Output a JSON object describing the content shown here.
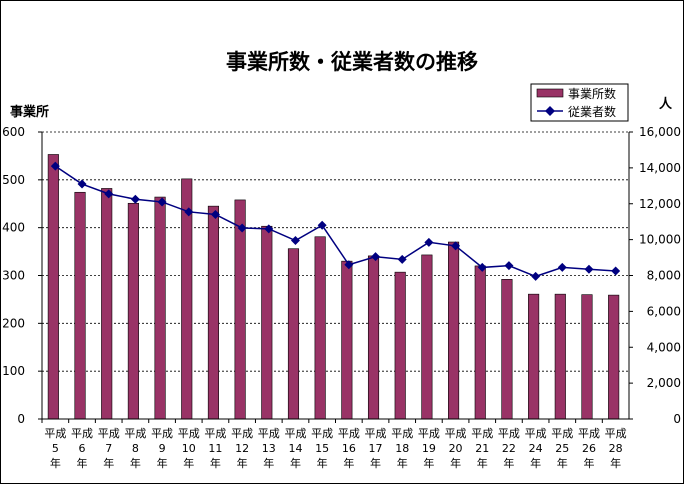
{
  "chart_data": {
    "type": "bar+line",
    "title": "事業所数・従業者数の推移",
    "left_axis_label": "事業所",
    "right_axis_label": "人",
    "left_ylim": [
      0,
      600
    ],
    "left_ticks": [
      "0",
      "100",
      "200",
      "300",
      "400",
      "500",
      "600"
    ],
    "right_ylim": [
      0,
      16000
    ],
    "right_ticks": [
      "0",
      "2,000",
      "4,000",
      "6,000",
      "8,000",
      "10,000",
      "12,000",
      "14,000",
      "16,000"
    ],
    "grid": true,
    "legend_position": "top-right",
    "categories": [
      [
        "平成",
        "5",
        "年"
      ],
      [
        "平成",
        "6",
        "年"
      ],
      [
        "平成",
        "7",
        "年"
      ],
      [
        "平成",
        "8",
        "年"
      ],
      [
        "平成",
        "9",
        "年"
      ],
      [
        "平成",
        "10",
        "年"
      ],
      [
        "平成",
        "11",
        "年"
      ],
      [
        "平成",
        "12",
        "年"
      ],
      [
        "平成",
        "13",
        "年"
      ],
      [
        "平成",
        "14",
        "年"
      ],
      [
        "平成",
        "15",
        "年"
      ],
      [
        "平成",
        "16",
        "年"
      ],
      [
        "平成",
        "17",
        "年"
      ],
      [
        "平成",
        "18",
        "年"
      ],
      [
        "平成",
        "19",
        "年"
      ],
      [
        "平成",
        "20",
        "年"
      ],
      [
        "平成",
        "21",
        "年"
      ],
      [
        "平成",
        "22",
        "年"
      ],
      [
        "平成",
        "24",
        "年"
      ],
      [
        "平成",
        "25",
        "年"
      ],
      [
        "平成",
        "26",
        "年"
      ],
      [
        "平成",
        "28",
        "年"
      ]
    ],
    "series": [
      {
        "name": "事業所数",
        "type": "bar",
        "axis": "left",
        "color": "#993366",
        "values": [
          553,
          474,
          482,
          451,
          464,
          502,
          445,
          458,
          403,
          356,
          381,
          330,
          341,
          307,
          343,
          370,
          320,
          292,
          261,
          261,
          260,
          259
        ]
      },
      {
        "name": "従業者数",
        "type": "line",
        "axis": "right",
        "color": "#000080",
        "values": [
          14100,
          13100,
          12550,
          12250,
          12100,
          11550,
          11400,
          10650,
          10600,
          9950,
          10800,
          8600,
          9050,
          8900,
          9850,
          9650,
          8450,
          8550,
          7950,
          8450,
          8350,
          8250
        ]
      }
    ]
  }
}
